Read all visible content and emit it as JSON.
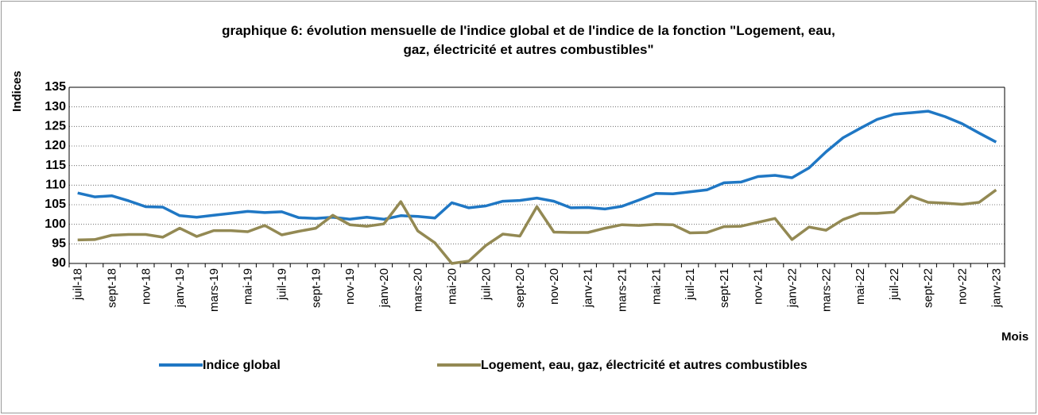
{
  "chart_data": {
    "type": "line",
    "title": [
      "graphique 6: évolution mensuelle de l'indice global et de l'indice de la fonction \"Logement, eau,",
      "gaz, électricité et autres combustibles\""
    ],
    "y_label": "Indices",
    "x_label": "Mois",
    "categories": [
      "juil-18",
      null,
      "sept-18",
      null,
      "nov-18",
      null,
      "janv-19",
      null,
      "mars-19",
      null,
      "mai-19",
      null,
      "juil-19",
      null,
      "sept-19",
      null,
      "nov-19",
      null,
      "janv-20",
      null,
      "mars-20",
      null,
      "mai-20",
      null,
      "juil-20",
      null,
      "sept-20",
      null,
      "nov-20",
      null,
      "janv-21",
      null,
      "mars-21",
      null,
      "mai-21",
      null,
      "juil-21",
      null,
      "sept-21",
      null,
      "nov-21",
      null,
      "janv-22",
      null,
      "mars-22",
      null,
      "mai-22",
      null,
      "juil-22",
      null,
      "sept-22",
      null,
      "nov-22",
      null,
      "janv-23"
    ],
    "series": [
      {
        "name": "Indice global",
        "color": "#1f77c4",
        "values": [
          108,
          107,
          107.3,
          106,
          104.5,
          104.4,
          102.2,
          101.8,
          102.3,
          102.8,
          103.3,
          103,
          103.2,
          101.7,
          101.5,
          101.8,
          101.3,
          101.8,
          101.3,
          102.2,
          102,
          101.6,
          105.5,
          104.2,
          104.7,
          105.9,
          106.1,
          106.7,
          105.9,
          104.2,
          104.3,
          103.9,
          104.6,
          106.2,
          107.9,
          107.8,
          108.3,
          108.8,
          110.6,
          110.8,
          112.2,
          112.5,
          111.9,
          114.4,
          118.5,
          122.1,
          124.5,
          126.8,
          128.1,
          128.5,
          128.9,
          127.5,
          125.7,
          123.3,
          121
        ]
      },
      {
        "name": "Logement, eau, gaz, électricité et autres combustibles",
        "color": "#938953",
        "values": [
          96,
          96.1,
          97.2,
          97.4,
          97.4,
          96.7,
          99,
          96.9,
          98.4,
          98.4,
          98.1,
          99.7,
          97.3,
          98.2,
          99,
          102.3,
          99.9,
          99.5,
          100.1,
          105.8,
          98.3,
          95.3,
          90,
          90.6,
          94.6,
          97.5,
          97,
          104.5,
          98,
          97.9,
          97.9,
          99,
          99.9,
          99.7,
          100,
          99.9,
          97.8,
          97.9,
          99.4,
          99.5,
          100.5,
          101.5,
          96.1,
          99.3,
          98.5,
          101.2,
          102.8,
          102.8,
          103.1,
          107.2,
          105.6,
          105.4,
          105.1,
          105.6,
          108.8
        ]
      }
    ],
    "ylim": [
      90,
      135
    ],
    "yticks": [
      90,
      95,
      100,
      105,
      110,
      115,
      120,
      125,
      130,
      135
    ],
    "grid": true
  }
}
